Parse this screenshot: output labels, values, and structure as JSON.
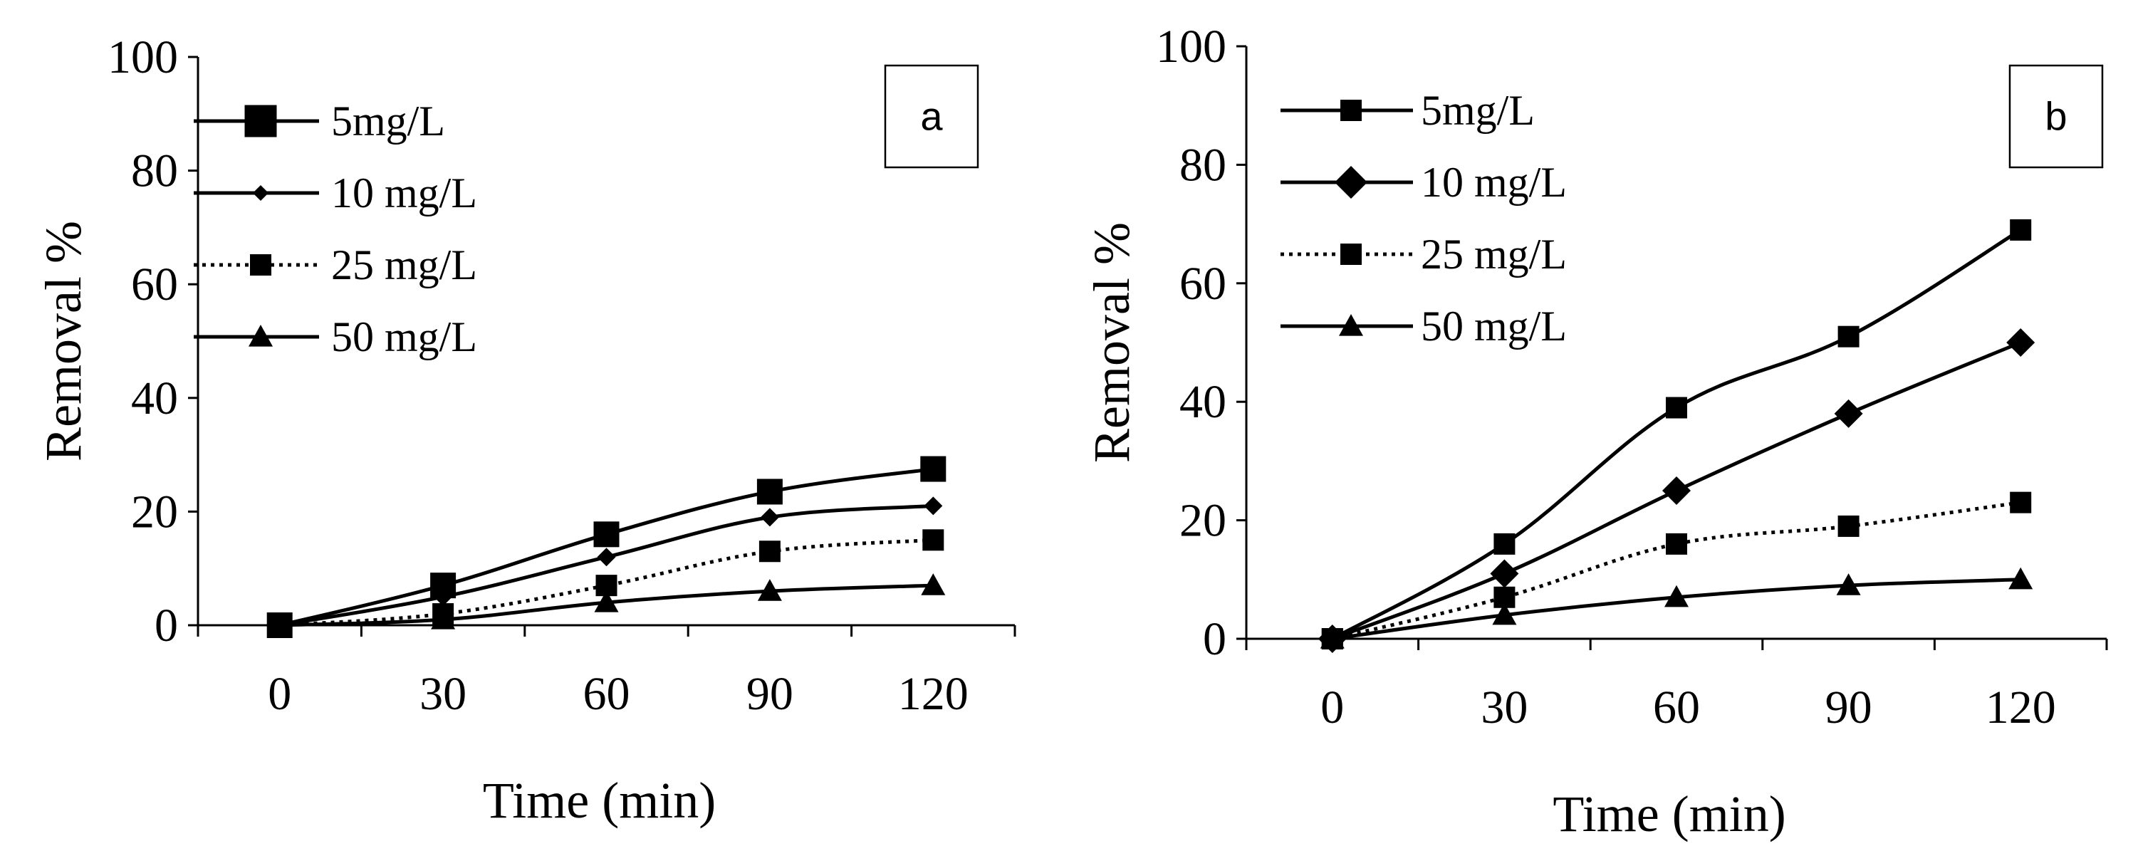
{
  "chart_data": [
    {
      "type": "line",
      "panel_label": "a",
      "xlabel": "Time (min)",
      "ylabel": "Removal %",
      "ylim": [
        0,
        100
      ],
      "yticks": [
        "0",
        "20",
        "40",
        "60",
        "80",
        "100"
      ],
      "xlim": [
        -15,
        135
      ],
      "xticks": [
        "0",
        "30",
        "60",
        "90",
        "120"
      ],
      "x": [
        0,
        30,
        60,
        90,
        120
      ],
      "legend_position": "top-left",
      "series": [
        {
          "name": "5mg/L",
          "values": [
            0,
            7,
            16,
            23.5,
            27.5
          ],
          "marker": "square-large",
          "line": "solid"
        },
        {
          "name": "10 mg/L",
          "values": [
            0,
            5,
            12,
            19,
            21
          ],
          "marker": "diamond-small",
          "line": "solid"
        },
        {
          "name": "25 mg/L",
          "values": [
            0,
            2,
            7,
            13,
            15
          ],
          "marker": "square",
          "line": "dotted"
        },
        {
          "name": "50 mg/L",
          "values": [
            0,
            1,
            4,
            6,
            7
          ],
          "marker": "triangle",
          "line": "solid"
        }
      ]
    },
    {
      "type": "line",
      "panel_label": "b",
      "xlabel": "Time (min)",
      "ylabel": "Removal %",
      "ylim": [
        0,
        100
      ],
      "yticks": [
        "0",
        "20",
        "40",
        "60",
        "80",
        "100"
      ],
      "xlim": [
        -15,
        135
      ],
      "xticks": [
        "0",
        "30",
        "60",
        "90",
        "120"
      ],
      "x": [
        0,
        30,
        60,
        90,
        120
      ],
      "legend_position": "top-left",
      "series": [
        {
          "name": "5mg/L",
          "values": [
            0,
            16,
            39,
            51,
            69
          ],
          "marker": "square",
          "line": "solid"
        },
        {
          "name": "10 mg/L",
          "values": [
            0,
            11,
            25,
            38,
            50
          ],
          "marker": "diamond",
          "line": "solid"
        },
        {
          "name": "25 mg/L",
          "values": [
            0,
            7,
            16,
            19,
            23
          ],
          "marker": "square",
          "line": "dotted"
        },
        {
          "name": "50 mg/L",
          "values": [
            0,
            4,
            7,
            9,
            10
          ],
          "marker": "triangle",
          "line": "solid"
        }
      ]
    }
  ]
}
